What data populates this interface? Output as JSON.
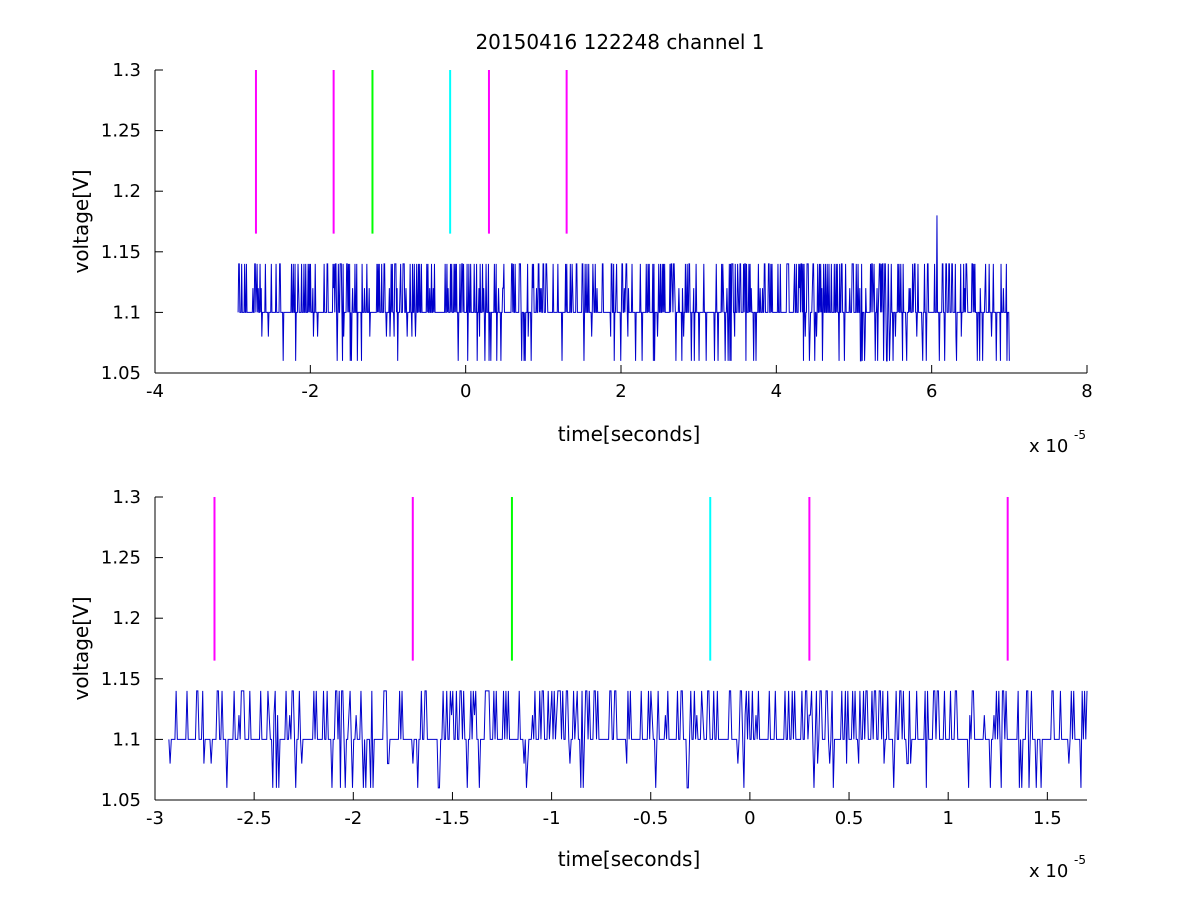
{
  "chart_data": [
    {
      "type": "line",
      "title": "20150416 122248 channel 1",
      "xlabel": "time[seconds]",
      "ylabel": "voltage[V]",
      "x_exponent_label": "x 10",
      "x_exponent": "-5",
      "xlim": [
        -4,
        8
      ],
      "ylim": [
        1.05,
        1.3
      ],
      "x_ticks": [
        "-4",
        "-2",
        "0",
        "2",
        "4",
        "6",
        "8"
      ],
      "y_ticks": [
        "1.05",
        "1.1",
        "1.15",
        "1.2",
        "1.25",
        "1.3"
      ],
      "grid": false,
      "signal": {
        "color": "#0000cc",
        "x_start": -2.93,
        "x_end": 7.0,
        "baseline": 1.1,
        "high": 1.14,
        "low": 1.06,
        "spike": {
          "x": 6.07,
          "y": 1.18
        }
      },
      "markers": [
        {
          "x": -2.7,
          "y0": 1.165,
          "y1": 1.3,
          "color": "#ff00ff"
        },
        {
          "x": -1.7,
          "y0": 1.165,
          "y1": 1.3,
          "color": "#ff00ff"
        },
        {
          "x": -1.2,
          "y0": 1.165,
          "y1": 1.3,
          "color": "#00ff00"
        },
        {
          "x": -0.2,
          "y0": 1.165,
          "y1": 1.3,
          "color": "#00ffff"
        },
        {
          "x": 0.3,
          "y0": 1.165,
          "y1": 1.3,
          "color": "#ff00ff"
        },
        {
          "x": 1.3,
          "y0": 1.165,
          "y1": 1.3,
          "color": "#ff00ff"
        }
      ]
    },
    {
      "type": "line",
      "title": "",
      "xlabel": "time[seconds]",
      "ylabel": "voltage[V]",
      "x_exponent_label": "x 10",
      "x_exponent": "-5",
      "xlim": [
        -3,
        1.7
      ],
      "ylim": [
        1.05,
        1.3
      ],
      "x_ticks": [
        "-3",
        "-2.5",
        "-2",
        "-1.5",
        "-1",
        "-0.5",
        "0",
        "0.5",
        "1",
        "1.5"
      ],
      "y_ticks": [
        "1.05",
        "1.1",
        "1.15",
        "1.2",
        "1.25",
        "1.3"
      ],
      "grid": false,
      "signal": {
        "color": "#0000cc",
        "x_start": -2.93,
        "x_end": 1.7,
        "baseline": 1.1,
        "high": 1.14,
        "low": 1.06
      },
      "markers": [
        {
          "x": -2.7,
          "y0": 1.165,
          "y1": 1.3,
          "color": "#ff00ff"
        },
        {
          "x": -1.7,
          "y0": 1.165,
          "y1": 1.3,
          "color": "#ff00ff"
        },
        {
          "x": -1.2,
          "y0": 1.165,
          "y1": 1.3,
          "color": "#00ff00"
        },
        {
          "x": -0.2,
          "y0": 1.165,
          "y1": 1.3,
          "color": "#00ffff"
        },
        {
          "x": 0.3,
          "y0": 1.165,
          "y1": 1.3,
          "color": "#ff00ff"
        },
        {
          "x": 1.3,
          "y0": 1.165,
          "y1": 1.3,
          "color": "#ff00ff"
        }
      ]
    }
  ]
}
